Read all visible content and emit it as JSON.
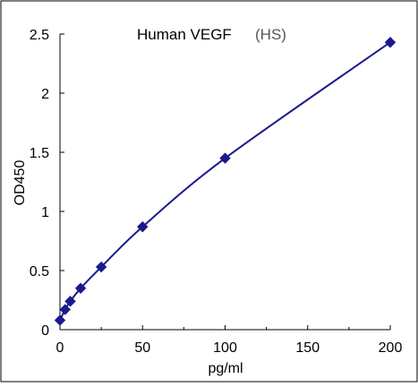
{
  "chart_data": {
    "type": "scatter",
    "title": "Human VEGF",
    "title_suffix": "(HS)",
    "xlabel": "pg/ml",
    "ylabel": "OD450",
    "xlim": [
      0,
      200
    ],
    "ylim": [
      0,
      2.5
    ],
    "x_ticks": [
      "0",
      "50",
      "100",
      "150",
      "200"
    ],
    "y_ticks": [
      "0",
      "0.5",
      "1",
      "1.5",
      "2",
      "2.5"
    ],
    "x_tick_values": [
      0,
      50,
      100,
      150,
      200
    ],
    "y_tick_values": [
      0,
      0.5,
      1,
      1.5,
      2,
      2.5
    ],
    "grid": false,
    "legend": "none",
    "series": [
      {
        "x": [
          0,
          3.13,
          6.25,
          12.5,
          25,
          50,
          100,
          200
        ],
        "y": [
          0.08,
          0.17,
          0.24,
          0.35,
          0.53,
          0.87,
          1.45,
          2.43
        ],
        "marker": "diamond",
        "trendline": "smooth-fit"
      }
    ],
    "colors": {
      "series": "#1a1a8c",
      "axis": "#000000",
      "frame": "#000000"
    }
  }
}
